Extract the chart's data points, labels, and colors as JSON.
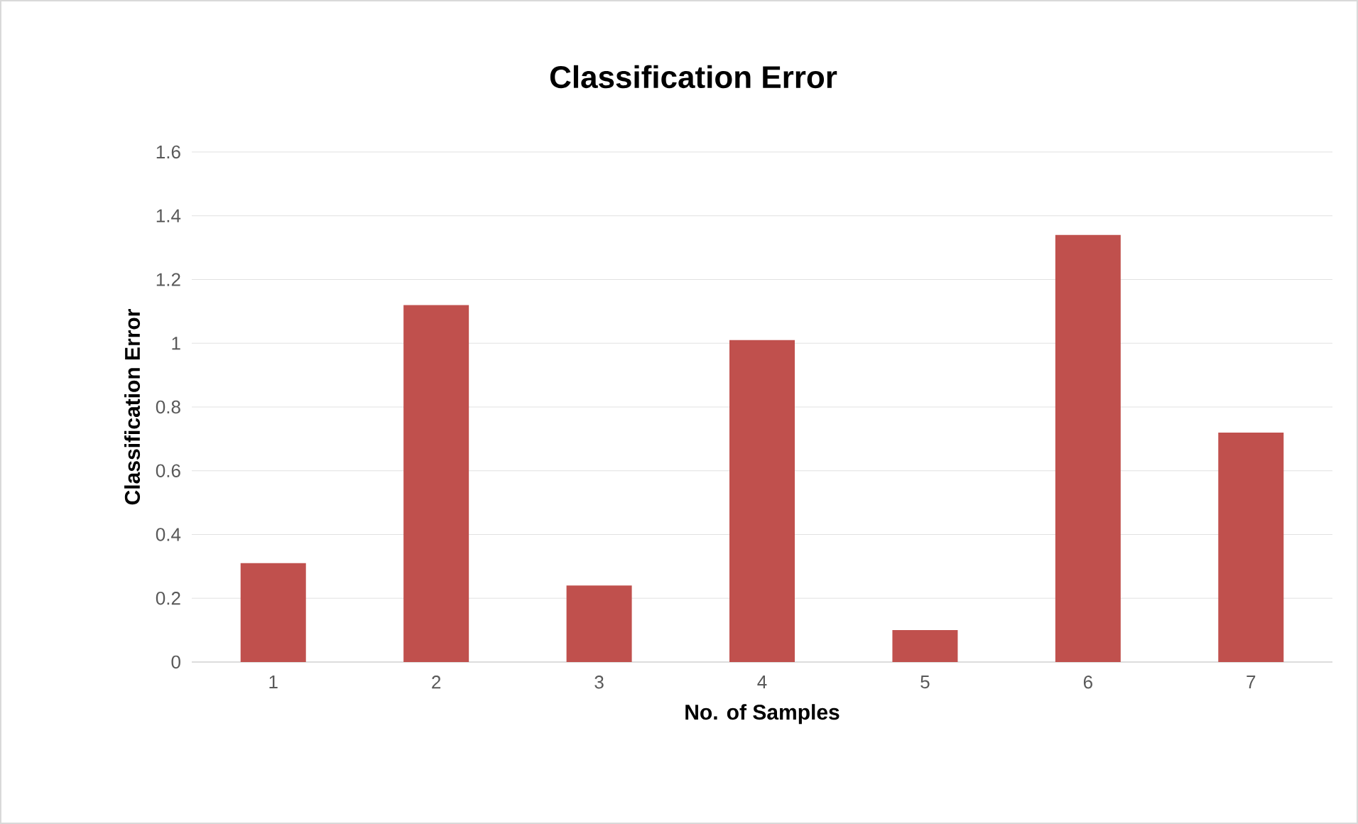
{
  "chart_data": {
    "type": "bar",
    "title": "Classification Error",
    "xlabel": "No. of Samples",
    "ylabel": "Classification Error",
    "categories": [
      "1",
      "2",
      "3",
      "4",
      "5",
      "6",
      "7"
    ],
    "values": [
      0.31,
      1.12,
      0.24,
      1.01,
      0.1,
      1.34,
      0.72
    ],
    "color": "#c0504d",
    "ylim": [
      0,
      1.6
    ],
    "yticks": [
      0,
      0.2,
      0.4,
      0.6,
      0.8,
      1,
      1.2,
      1.4,
      1.6
    ],
    "grid": "y"
  }
}
